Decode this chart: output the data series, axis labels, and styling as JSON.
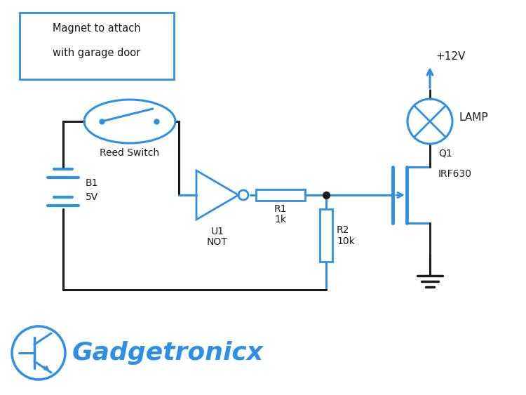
{
  "bg_color": "#ffffff",
  "blue": "#2e8fe8",
  "black": "#1a1a1a",
  "magnet_box_text": [
    "Magnet to attach",
    "with garage door"
  ],
  "reed_switch_text": "Reed Switch",
  "battery_label": [
    "B1",
    "5V"
  ],
  "not_label": [
    "U1",
    "NOT"
  ],
  "r1_label": [
    "R1",
    "1k"
  ],
  "r2_label": [
    "R2",
    "10k"
  ],
  "q1_label": [
    "Q1",
    "IRF630"
  ],
  "lamp_label": "LAMP",
  "supply_label": "+12V",
  "brand": "Gadgetronicx"
}
